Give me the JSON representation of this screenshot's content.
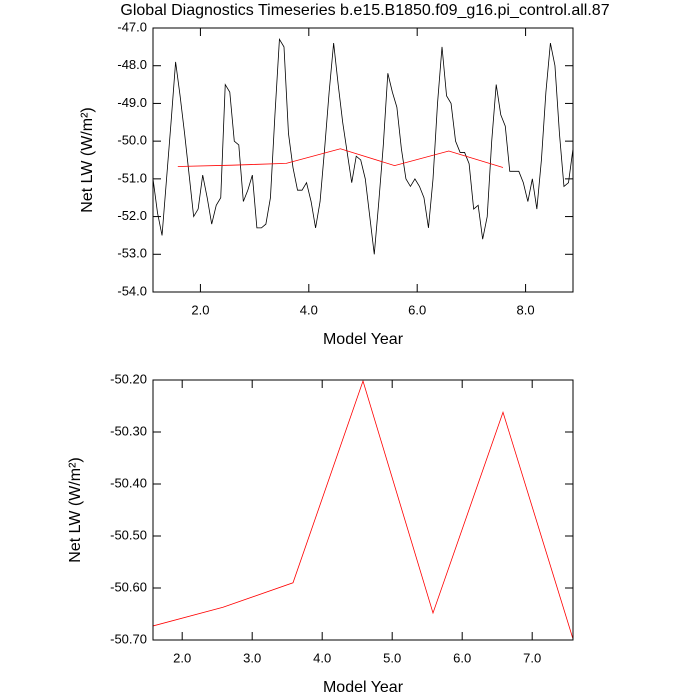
{
  "chart_data": [
    {
      "type": "line",
      "title": "Global Diagnostics Timeseries b.e15.B1850.f09_g16.pi_control.all.87",
      "x_label": "Model Year",
      "y_label": "Net LW (W/m²)",
      "xlim": [
        1.125,
        8.875
      ],
      "ylim": [
        -54,
        -47
      ],
      "xticks": [
        {
          "value": 2,
          "label": "2.0"
        },
        {
          "value": 4,
          "label": "4.0"
        },
        {
          "value": 6,
          "label": "6.0"
        },
        {
          "value": 8,
          "label": "8.0"
        }
      ],
      "yticks": [
        {
          "value": -54,
          "label": "-54.0"
        },
        {
          "value": -53,
          "label": "-53.0"
        },
        {
          "value": -52,
          "label": "-52.0"
        },
        {
          "value": -51,
          "label": "-51.0"
        },
        {
          "value": -50,
          "label": "-50.0"
        },
        {
          "value": -49,
          "label": "-49.0"
        },
        {
          "value": -48,
          "label": "-48.0"
        },
        {
          "value": -47,
          "label": "-47.0"
        }
      ],
      "series": [
        {
          "color": "#000000",
          "x": [
            1.125,
            1.208,
            1.292,
            1.375,
            1.458,
            1.542,
            1.625,
            1.708,
            1.792,
            1.875,
            1.958,
            2.042,
            2.125,
            2.208,
            2.292,
            2.375,
            2.458,
            2.542,
            2.625,
            2.708,
            2.792,
            2.875,
            2.958,
            3.042,
            3.125,
            3.208,
            3.292,
            3.375,
            3.458,
            3.542,
            3.625,
            3.708,
            3.792,
            3.875,
            3.958,
            4.042,
            4.125,
            4.208,
            4.292,
            4.375,
            4.458,
            4.542,
            4.625,
            4.708,
            4.792,
            4.875,
            4.958,
            5.042,
            5.125,
            5.208,
            5.292,
            5.375,
            5.458,
            5.542,
            5.625,
            5.708,
            5.792,
            5.875,
            5.958,
            6.042,
            6.125,
            6.208,
            6.292,
            6.375,
            6.458,
            6.542,
            6.625,
            6.708,
            6.792,
            6.875,
            6.958,
            7.042,
            7.125,
            7.208,
            7.292,
            7.375,
            7.458,
            7.542,
            7.625,
            7.708,
            7.792,
            7.875,
            7.958,
            8.042,
            8.125,
            8.208,
            8.292,
            8.375,
            8.458,
            8.542,
            8.625,
            8.708,
            8.792,
            8.875
          ],
          "values": [
            -51.0,
            -51.9,
            -52.5,
            -51.0,
            -49.5,
            -47.9,
            -48.8,
            -49.8,
            -50.9,
            -52.0,
            -51.8,
            -50.9,
            -51.5,
            -52.2,
            -51.7,
            -51.5,
            -48.5,
            -48.7,
            -50.0,
            -50.1,
            -51.6,
            -51.3,
            -50.9,
            -52.3,
            -52.3,
            -52.2,
            -51.5,
            -49.3,
            -47.3,
            -47.5,
            -49.8,
            -50.7,
            -51.3,
            -51.3,
            -51.1,
            -51.6,
            -52.3,
            -51.6,
            -50.2,
            -48.7,
            -47.4,
            -48.5,
            -49.5,
            -50.3,
            -51.1,
            -50.4,
            -50.5,
            -51.0,
            -52.0,
            -53.0,
            -51.6,
            -50.1,
            -48.2,
            -48.7,
            -49.1,
            -50.2,
            -51.0,
            -51.2,
            -51.0,
            -51.2,
            -51.5,
            -52.3,
            -51.0,
            -49.0,
            -47.5,
            -48.8,
            -49.0,
            -50.0,
            -50.3,
            -50.3,
            -50.6,
            -51.8,
            -51.7,
            -52.6,
            -52.0,
            -50.0,
            -48.5,
            -49.3,
            -49.6,
            -50.8,
            -50.8,
            -50.8,
            -51.1,
            -51.6,
            -51.0,
            -51.8,
            -50.5,
            -48.7,
            -47.4,
            -48.0,
            -49.8,
            -51.2,
            -51.1,
            -50.2
          ]
        },
        {
          "color": "#ff0000",
          "x": [
            1.583,
            2.583,
            3.583,
            4.583,
            5.583,
            6.583,
            7.583
          ],
          "values": [
            -50.673,
            -50.637,
            -50.59,
            -50.202,
            -50.648,
            -50.262,
            -50.698
          ]
        }
      ]
    },
    {
      "type": "line",
      "x_label": "Model Year",
      "y_label": "Net LW (W/m²)",
      "xlim": [
        1.583,
        7.583
      ],
      "ylim": [
        -50.7,
        -50.2
      ],
      "xticks": [
        {
          "value": 2,
          "label": "2.0"
        },
        {
          "value": 3,
          "label": "3.0"
        },
        {
          "value": 4,
          "label": "4.0"
        },
        {
          "value": 5,
          "label": "5.0"
        },
        {
          "value": 6,
          "label": "6.0"
        },
        {
          "value": 7,
          "label": "7.0"
        }
      ],
      "yticks": [
        {
          "value": -50.7,
          "label": "-50.70"
        },
        {
          "value": -50.6,
          "label": "-50.60"
        },
        {
          "value": -50.5,
          "label": "-50.50"
        },
        {
          "value": -50.4,
          "label": "-50.40"
        },
        {
          "value": -50.3,
          "label": "-50.30"
        },
        {
          "value": -50.2,
          "label": "-50.20"
        }
      ],
      "series": [
        {
          "color": "#ff0000",
          "x": [
            1.583,
            2.583,
            3.583,
            4.583,
            5.583,
            6.583,
            7.583
          ],
          "values": [
            -50.673,
            -50.637,
            -50.59,
            -50.202,
            -50.648,
            -50.262,
            -50.698
          ]
        }
      ]
    }
  ]
}
